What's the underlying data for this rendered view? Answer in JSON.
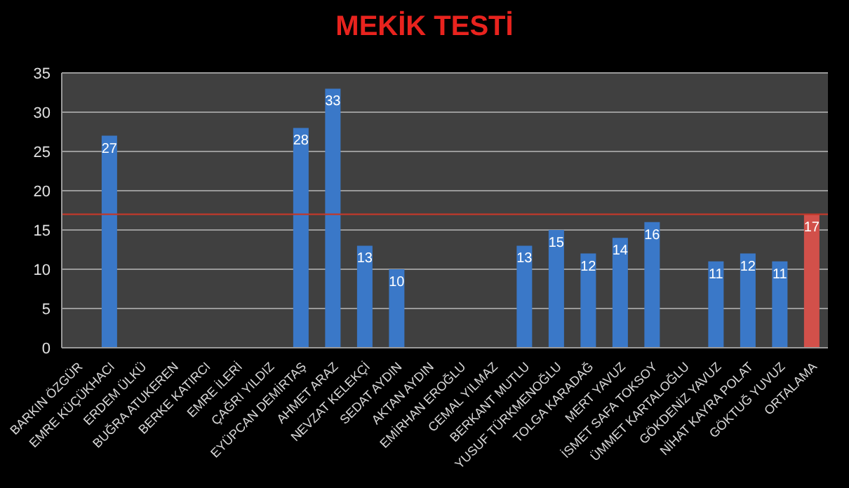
{
  "chart_data": {
    "type": "bar",
    "title": "MEKİK TESTİ",
    "categories": [
      "BARKIN ÖZGÜR",
      "EMRE KÜÇÜKHACI",
      "ERDEM ÜLKÜ",
      "BUĞRA ATUKEREN",
      "BERKE KATIRCI",
      "EMRE İLERİ",
      "ÇAĞRI YILDIZ",
      "EYÜPCAN DEMİRTAŞ",
      "AHMET ARAZ",
      "NEVZAT KELEKÇİ",
      "SEDAT AYDIN",
      "AKTAN AYDIN",
      "EMİRHAN EROĞLU",
      "CEMAL YILMAZ",
      "BERKANT MUTLU",
      "YUSUF TÜRKMENOĞLU",
      "TOLGA KARADAĞ",
      "MERT YAVUZ",
      "İSMET SAFA TOKSOY",
      "ÜMMET KARTALOĞLU",
      "GÖKDENİZ YAVUZ",
      "NİHAT KAYRA POLAT",
      "GÖKTUĞ YUVUZ",
      "ORTALAMA"
    ],
    "values": [
      null,
      27,
      null,
      null,
      null,
      null,
      null,
      28,
      33,
      13,
      10,
      null,
      null,
      null,
      13,
      15,
      12,
      14,
      16,
      null,
      11,
      12,
      11,
      17
    ],
    "colors": [
      "#3a78c8",
      "#3a78c8",
      "#3a78c8",
      "#3a78c8",
      "#3a78c8",
      "#3a78c8",
      "#3a78c8",
      "#3a78c8",
      "#3a78c8",
      "#3a78c8",
      "#3a78c8",
      "#3a78c8",
      "#3a78c8",
      "#3a78c8",
      "#3a78c8",
      "#3a78c8",
      "#3a78c8",
      "#3a78c8",
      "#3a78c8",
      "#3a78c8",
      "#3a78c8",
      "#3a78c8",
      "#3a78c8",
      "#d2504a"
    ],
    "ylim": [
      0,
      35
    ],
    "yticks": [
      0,
      5,
      10,
      15,
      20,
      25,
      30,
      35
    ],
    "grid": "y",
    "data_labels": true,
    "ref_lines": [
      {
        "axis": "y",
        "value": 17,
        "color": "#c0392b"
      }
    ]
  }
}
